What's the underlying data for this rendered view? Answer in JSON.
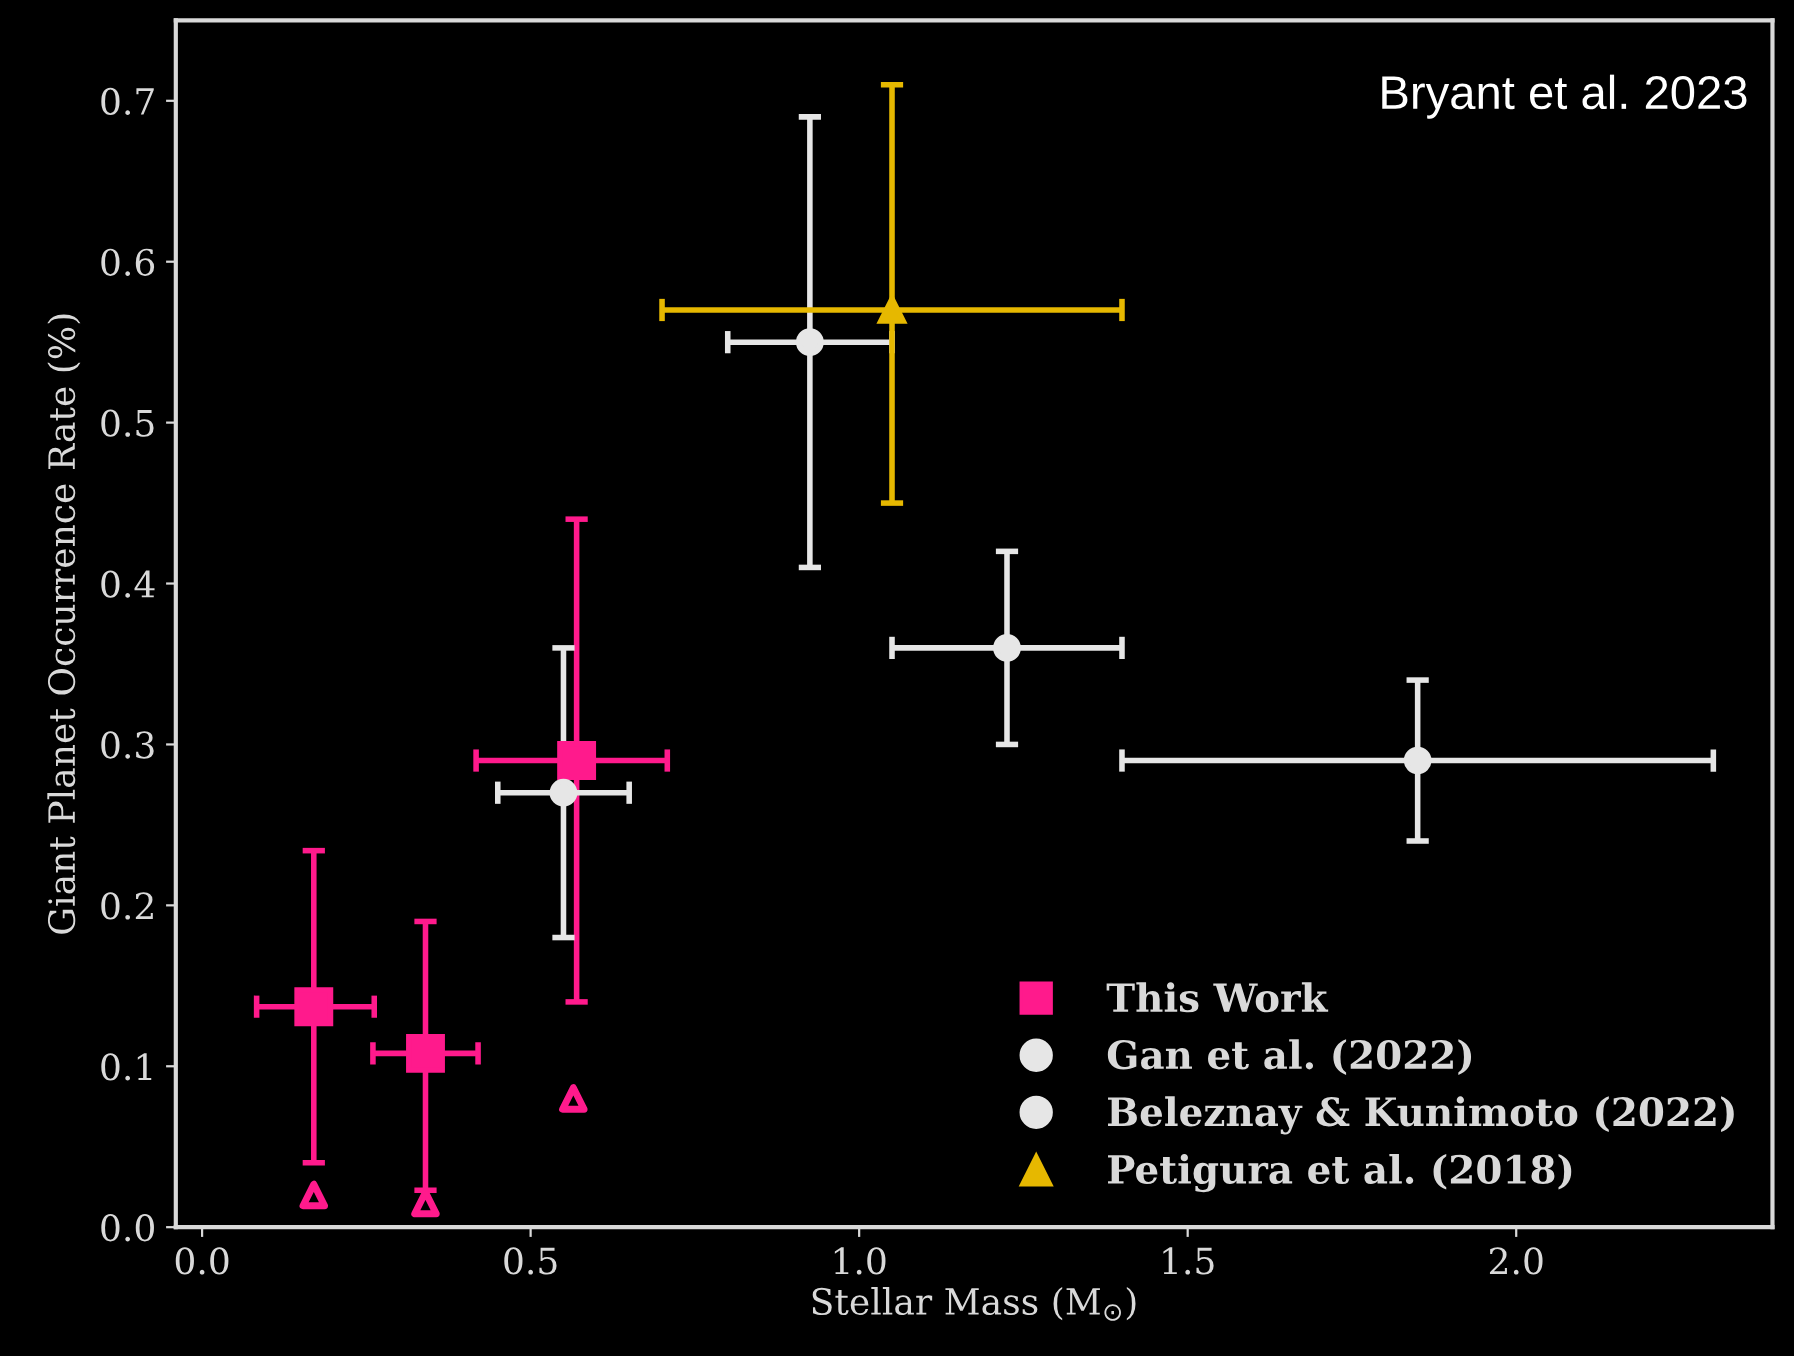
{
  "chart_data": {
    "type": "scatter",
    "xlabel": "Stellar Mass (M$_{⊙}$)",
    "ylabel": "Giant Planet Occurrence Rate (%)",
    "xlim": [
      -0.04,
      2.39
    ],
    "ylim": [
      0,
      0.75
    ],
    "xticks": [
      {
        "value": 0,
        "label": "0.0"
      },
      0.5,
      {
        "value": 1,
        "label": "1.0"
      },
      1.5,
      {
        "value": 2,
        "label": "2.0"
      }
    ],
    "yticks": [
      {
        "value": 0,
        "label": "0.0"
      },
      0.1,
      0.2,
      0.3,
      0.4,
      0.5,
      0.6,
      0.7
    ],
    "annotations": [
      "Bryant et al. 2023"
    ],
    "legend": "lower right",
    "grid": false,
    "series": [
      {
        "name": "This Work",
        "color": "#ff1a8c",
        "marker": "square",
        "x": [
          0.17,
          0.34,
          0.57
        ],
        "values": [
          0.137,
          0.108,
          0.29
        ],
        "errors": [
          [
            0.04,
            0.234
          ],
          [
            0.023,
            0.19
          ],
          [
            0.14,
            0.44
          ]
        ],
        "xerrors": [
          [
            0.083,
            0.262
          ],
          [
            0.26,
            0.42
          ],
          [
            0.417,
            0.708
          ]
        ]
      },
      {
        "color": "#ff1a8c",
        "marker": "triangle",
        "x": [
          0.17,
          0.34,
          0.565
        ],
        "values": [
          0.02,
          0.015,
          0.08
        ]
      },
      {
        "name": "Gan et al. (2022)",
        "color": "#e6e6e6",
        "marker": "circle",
        "x": [
          0.55
        ],
        "values": [
          0.27
        ],
        "errors": [
          [
            0.18,
            0.36
          ]
        ],
        "xerrors": [
          [
            0.45,
            0.65
          ]
        ]
      },
      {
        "name": "Beleznay & Kunimoto (2022)",
        "color": "#e6e6e6",
        "marker": "circle",
        "x": [
          0.925,
          1.225,
          1.85
        ],
        "values": [
          0.55,
          0.36,
          0.29
        ],
        "errors": [
          [
            0.41,
            0.69
          ],
          [
            0.3,
            0.42
          ],
          [
            0.24,
            0.34
          ]
        ],
        "xerrors": [
          [
            0.8,
            1.05
          ],
          [
            1.05,
            1.4
          ],
          [
            1.4,
            2.3
          ]
        ]
      },
      {
        "name": "Petigura et al. (2018)",
        "color": "#e6b800",
        "marker": "triangle",
        "x": [
          1.05
        ],
        "values": [
          0.57
        ],
        "errors": [
          [
            0.45,
            0.71
          ]
        ],
        "xerrors": [
          [
            0.7,
            1.4
          ]
        ]
      }
    ]
  }
}
